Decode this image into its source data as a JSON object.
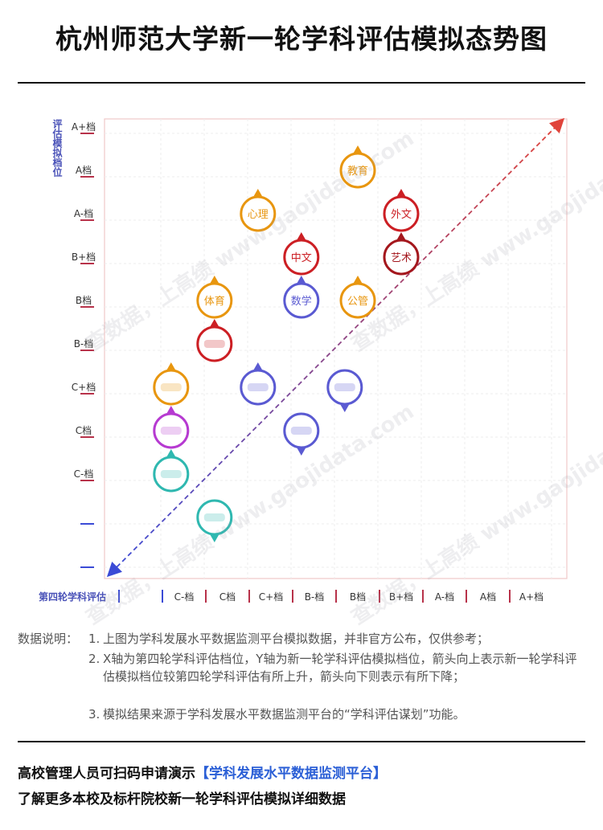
{
  "title": "杭州师范大学新一轮学科评估模拟态势图",
  "chart_data": {
    "type": "scatter",
    "title": "杭州师范大学新一轮学科评估模拟态势图",
    "xlabel": "第四轮学科评估",
    "ylabel": "评估模拟档位",
    "x_ticks": [
      "",
      "C-档",
      "C档",
      "C+档",
      "B-档",
      "B档",
      "B+档",
      "A-档",
      "A档",
      "A+档"
    ],
    "y_ticks": [
      "C-档",
      "C档",
      "C+档",
      "B-档",
      "B档",
      "B+档",
      "A-档",
      "A档",
      "A+档"
    ],
    "legend": "none",
    "grid": true,
    "diagonal": true,
    "points": [
      {
        "label": "教育",
        "x": 5,
        "y": 7,
        "dir": "up",
        "color": "#e8960f"
      },
      {
        "label": "心理",
        "x": 2.7,
        "y": 6,
        "dir": "up",
        "color": "#e8960f"
      },
      {
        "label": "外文",
        "x": 6,
        "y": 6,
        "dir": "up",
        "color": "#cc1f24"
      },
      {
        "label": "中文",
        "x": 3.7,
        "y": 5,
        "dir": "up",
        "color": "#cc1f24"
      },
      {
        "label": "艺术",
        "x": 6,
        "y": 5,
        "dir": "up",
        "color": "#a4171d"
      },
      {
        "label": "体育",
        "x": 1.7,
        "y": 4,
        "dir": "up",
        "color": "#e8960f"
      },
      {
        "label": "数学",
        "x": 3.7,
        "y": 4,
        "dir": "up",
        "color": "#5a5ad2"
      },
      {
        "label": "公管",
        "x": 5,
        "y": 4,
        "dir": "up",
        "color": "#e8960f"
      },
      {
        "label": "",
        "x": 1.7,
        "y": 3,
        "dir": "up",
        "color": "#cc1f24"
      },
      {
        "label": "",
        "x": 0.7,
        "y": 2,
        "dir": "up",
        "color": "#e8960f"
      },
      {
        "label": "",
        "x": 2.7,
        "y": 2,
        "dir": "up",
        "color": "#5a5ad2"
      },
      {
        "label": "",
        "x": 4.7,
        "y": 2,
        "dir": "down",
        "color": "#5a5ad2"
      },
      {
        "label": "",
        "x": 0.7,
        "y": 1,
        "dir": "up",
        "color": "#b63ad1"
      },
      {
        "label": "",
        "x": 3.7,
        "y": 1,
        "dir": "down",
        "color": "#5a5ad2"
      },
      {
        "label": "",
        "x": 0.7,
        "y": 0,
        "dir": "up",
        "color": "#2fb8b0"
      },
      {
        "label": "",
        "x": 1.7,
        "y": -1,
        "dir": "down",
        "color": "#2fb8b0"
      }
    ]
  },
  "notes": {
    "lead": "数据说明：",
    "items": [
      {
        "num": "1.",
        "text": "上图为学科发展水平数据监测平台模拟数据，并非官方公布，仅供参考；"
      },
      {
        "num": "2.",
        "text": "X轴为第四轮学科评估档位，Y轴为新一轮学科评估模拟档位，箭头向上表示新一轮学科评估模拟档位较第四轮学科评估有所上升，箭头向下则表示有所下降；"
      },
      {
        "num": "3.",
        "text": "模拟结果来源于学科发展水平数据监测平台的“学科评估谋划”功能。"
      }
    ]
  },
  "footer": {
    "line1_prefix": "高校管理人员可扫码申请演示",
    "line1_highlight": "【学科发展水平数据监测平台】",
    "line2": "了解更多本校及标杆院校新一轮学科评估模拟详细数据"
  },
  "watermark": "查数据，上高绩 www.gaojidata.com"
}
